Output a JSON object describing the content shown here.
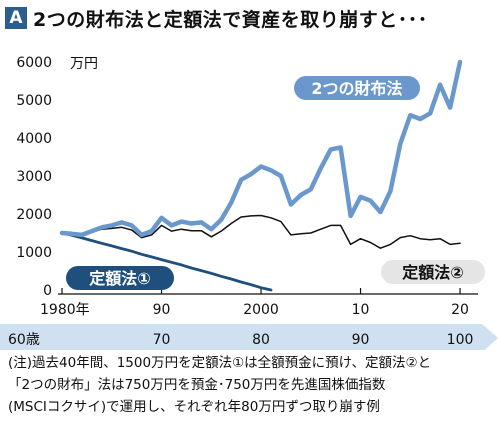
{
  "header": {
    "badge": "A",
    "title": "2つの財布法と定額法で資産を取り崩すと･･･"
  },
  "note": {
    "lines": [
      "(注)過去40年間、1500万円を定額法①は全額預金に預け、定額法②と",
      "「2つの財布」法は750万円を預金･750万円を先進国株価指数",
      "(MSCIコクサイ)で運用し、それぞれ年80万円ずつ取り崩す例"
    ]
  },
  "chart_data": {
    "type": "line",
    "ylabel": "万円",
    "ylim": [
      0,
      6000
    ],
    "yticks": [
      0,
      1000,
      2000,
      3000,
      4000,
      5000,
      6000
    ],
    "xlim": [
      1980,
      2021
    ],
    "xticks": [
      {
        "value": 1980,
        "label": "1980年"
      },
      {
        "value": 1990,
        "label": "90"
      },
      {
        "value": 2000,
        "label": "2000"
      },
      {
        "value": 2010,
        "label": "10"
      },
      {
        "value": 2020,
        "label": "20"
      }
    ],
    "age_axis": [
      {
        "value": 1980,
        "label": "60歳"
      },
      {
        "value": 1990,
        "label": "70"
      },
      {
        "value": 2000,
        "label": "80"
      },
      {
        "value": 2010,
        "label": "90"
      },
      {
        "value": 2020,
        "label": "100"
      }
    ],
    "grid": false,
    "colors": {
      "two_wallets": "#6a98cc",
      "fixed1": "#1f4f7d",
      "fixed2": "#111111",
      "age_band": "#cfe0f1"
    },
    "series": [
      {
        "name": "2つの財布法",
        "x": [
          1980,
          1981,
          1982,
          1983,
          1984,
          1985,
          1986,
          1987,
          1988,
          1989,
          1990,
          1991,
          1992,
          1993,
          1994,
          1995,
          1996,
          1997,
          1998,
          1999,
          2000,
          2001,
          2002,
          2003,
          2004,
          2005,
          2006,
          2007,
          2008,
          2009,
          2010,
          2011,
          2012,
          2013,
          2014,
          2015,
          2016,
          2017,
          2018,
          2019,
          2020
        ],
        "y": [
          1500,
          1480,
          1450,
          1550,
          1650,
          1700,
          1780,
          1700,
          1450,
          1550,
          1900,
          1700,
          1800,
          1750,
          1780,
          1600,
          1850,
          2300,
          2900,
          3050,
          3250,
          3150,
          3000,
          2250,
          2500,
          2650,
          3200,
          3700,
          3750,
          1950,
          2450,
          2350,
          2050,
          2600,
          3850,
          4600,
          4500,
          4650,
          5400,
          4800,
          6000
        ]
      },
      {
        "name": "定額法①",
        "x": [
          1980,
          1981,
          1982,
          1983,
          1984,
          1985,
          1986,
          1987,
          1988,
          1989,
          1990,
          1991,
          1992,
          1993,
          1994,
          1995,
          1996,
          1997,
          1998,
          1999,
          2000,
          2001
        ],
        "y": [
          1500,
          1440,
          1370,
          1300,
          1230,
          1160,
          1090,
          1020,
          940,
          870,
          800,
          730,
          660,
          580,
          510,
          440,
          360,
          290,
          210,
          140,
          60,
          0
        ]
      },
      {
        "name": "定額法②",
        "x": [
          1980,
          1981,
          1982,
          1983,
          1984,
          1985,
          1986,
          1987,
          1988,
          1989,
          1990,
          1991,
          1992,
          1993,
          1994,
          1995,
          1996,
          1997,
          1998,
          1999,
          2000,
          2001,
          2002,
          2003,
          2004,
          2005,
          2006,
          2007,
          2008,
          2009,
          2010,
          2011,
          2012,
          2013,
          2014,
          2015,
          2016,
          2017,
          2018,
          2019,
          2020
        ],
        "y": [
          1500,
          1470,
          1440,
          1520,
          1600,
          1620,
          1650,
          1580,
          1380,
          1450,
          1700,
          1550,
          1600,
          1560,
          1560,
          1400,
          1550,
          1750,
          1920,
          1950,
          1960,
          1900,
          1800,
          1450,
          1480,
          1500,
          1600,
          1700,
          1700,
          1200,
          1350,
          1250,
          1100,
          1200,
          1380,
          1430,
          1350,
          1320,
          1350,
          1200,
          1230
        ]
      }
    ]
  }
}
